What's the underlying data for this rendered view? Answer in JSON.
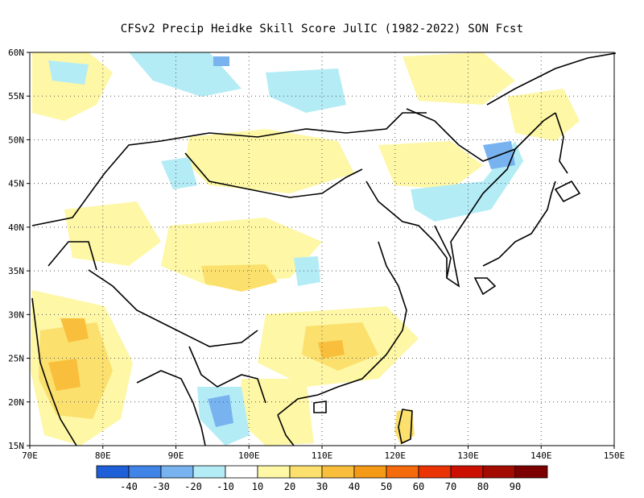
{
  "title": "CFSv2 Precip Heidke Skill Score JulIC (1982-2022) SON Fcst",
  "map": {
    "lon_range": [
      70,
      150
    ],
    "lat_range": [
      15,
      60
    ],
    "grid": "dotted",
    "lon_ticks": [
      "70E",
      "80E",
      "90E",
      "100E",
      "110E",
      "120E",
      "130E",
      "140E",
      "150E"
    ],
    "lat_ticks": [
      "15N",
      "20N",
      "25N",
      "30N",
      "35N",
      "40N",
      "45N",
      "50N",
      "55N",
      "60N"
    ]
  },
  "colorbar": {
    "colors": [
      "#1f5fd8",
      "#3f84e6",
      "#78b3f0",
      "#b4ecf6",
      "#ffffff",
      "#fdf7a6",
      "#fbe06d",
      "#f9bf3c",
      "#f59a17",
      "#f56a0b",
      "#ea3406",
      "#cb1002",
      "#a30a00",
      "#7c0000"
    ],
    "labels": [
      "-40",
      "-30",
      "-20",
      "-10",
      "10",
      "20",
      "30",
      "40",
      "50",
      "60",
      "70",
      "80",
      "90"
    ]
  },
  "features": [
    {
      "name": "india-west-skill-area",
      "hss": 40
    },
    {
      "name": "south-china-skill-area",
      "hss": 30
    },
    {
      "name": "myanmar-negative-area",
      "hss": -20
    },
    {
      "name": "taiwan-skill-area",
      "hss": 30
    }
  ]
}
